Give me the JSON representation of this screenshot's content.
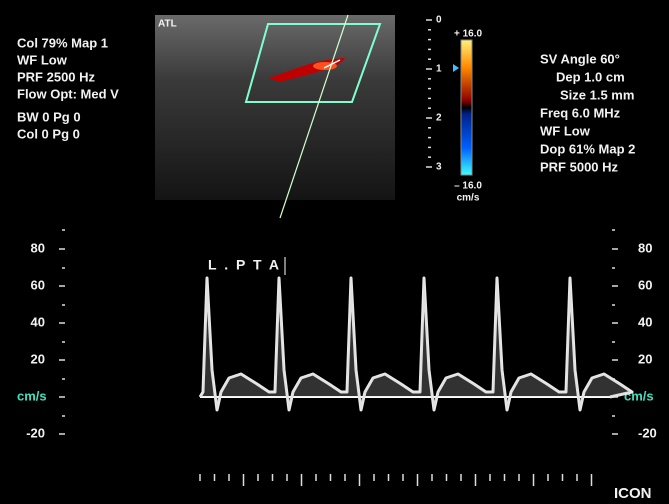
{
  "ultrasound": {
    "logo": "ATL",
    "color_settings": [
      "Col 79%  Map 1",
      "WF Low",
      "PRF 2500  Hz",
      "Flow Opt: Med V",
      "BW 0    Pg 0",
      "Col 0    Pg 0"
    ],
    "doppler_settings": [
      "SV Angle 60°",
      "Dep 1.0  cm",
      "Size 1.5  mm",
      "Freq 6.0  MHz",
      "WF Low",
      "Dop 61%  Map 2",
      "PRF 5000  Hz"
    ],
    "depth_scale": [
      "0",
      "1",
      "2",
      "3"
    ],
    "color_bar": {
      "max": "+ 16.0",
      "min": "– 16.0",
      "unit": "cm/s"
    },
    "vessel_label": "L . P T A",
    "velocity_scale_left": [
      "80",
      "60",
      "40",
      "20",
      "cm/s",
      "-20"
    ],
    "velocity_scale_right": [
      "80",
      "60",
      "40",
      "20",
      "cm/s",
      "-20"
    ],
    "watermark": "ICON"
  }
}
